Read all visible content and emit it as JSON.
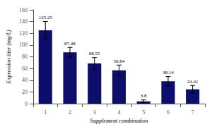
{
  "chart_data": {
    "type": "bar",
    "categories": [
      "1",
      "2",
      "3",
      "4",
      "5",
      "6",
      "7"
    ],
    "values": [
      125.25,
      87.48,
      68.55,
      56.84,
      3.8,
      38.14,
      24.41
    ],
    "errors": [
      15.0,
      8.5,
      10.0,
      9.0,
      2.5,
      8.0,
      6.5
    ],
    "color": "#0d0d6b",
    "xlabel": "Supplement combination",
    "ylabel": "Expression titer (mg/L)",
    "ylim": [
      0,
      160
    ],
    "yticks": [
      0,
      20,
      40,
      60,
      80,
      100,
      120,
      140,
      160
    ],
    "grid": false,
    "data_labels": true
  }
}
